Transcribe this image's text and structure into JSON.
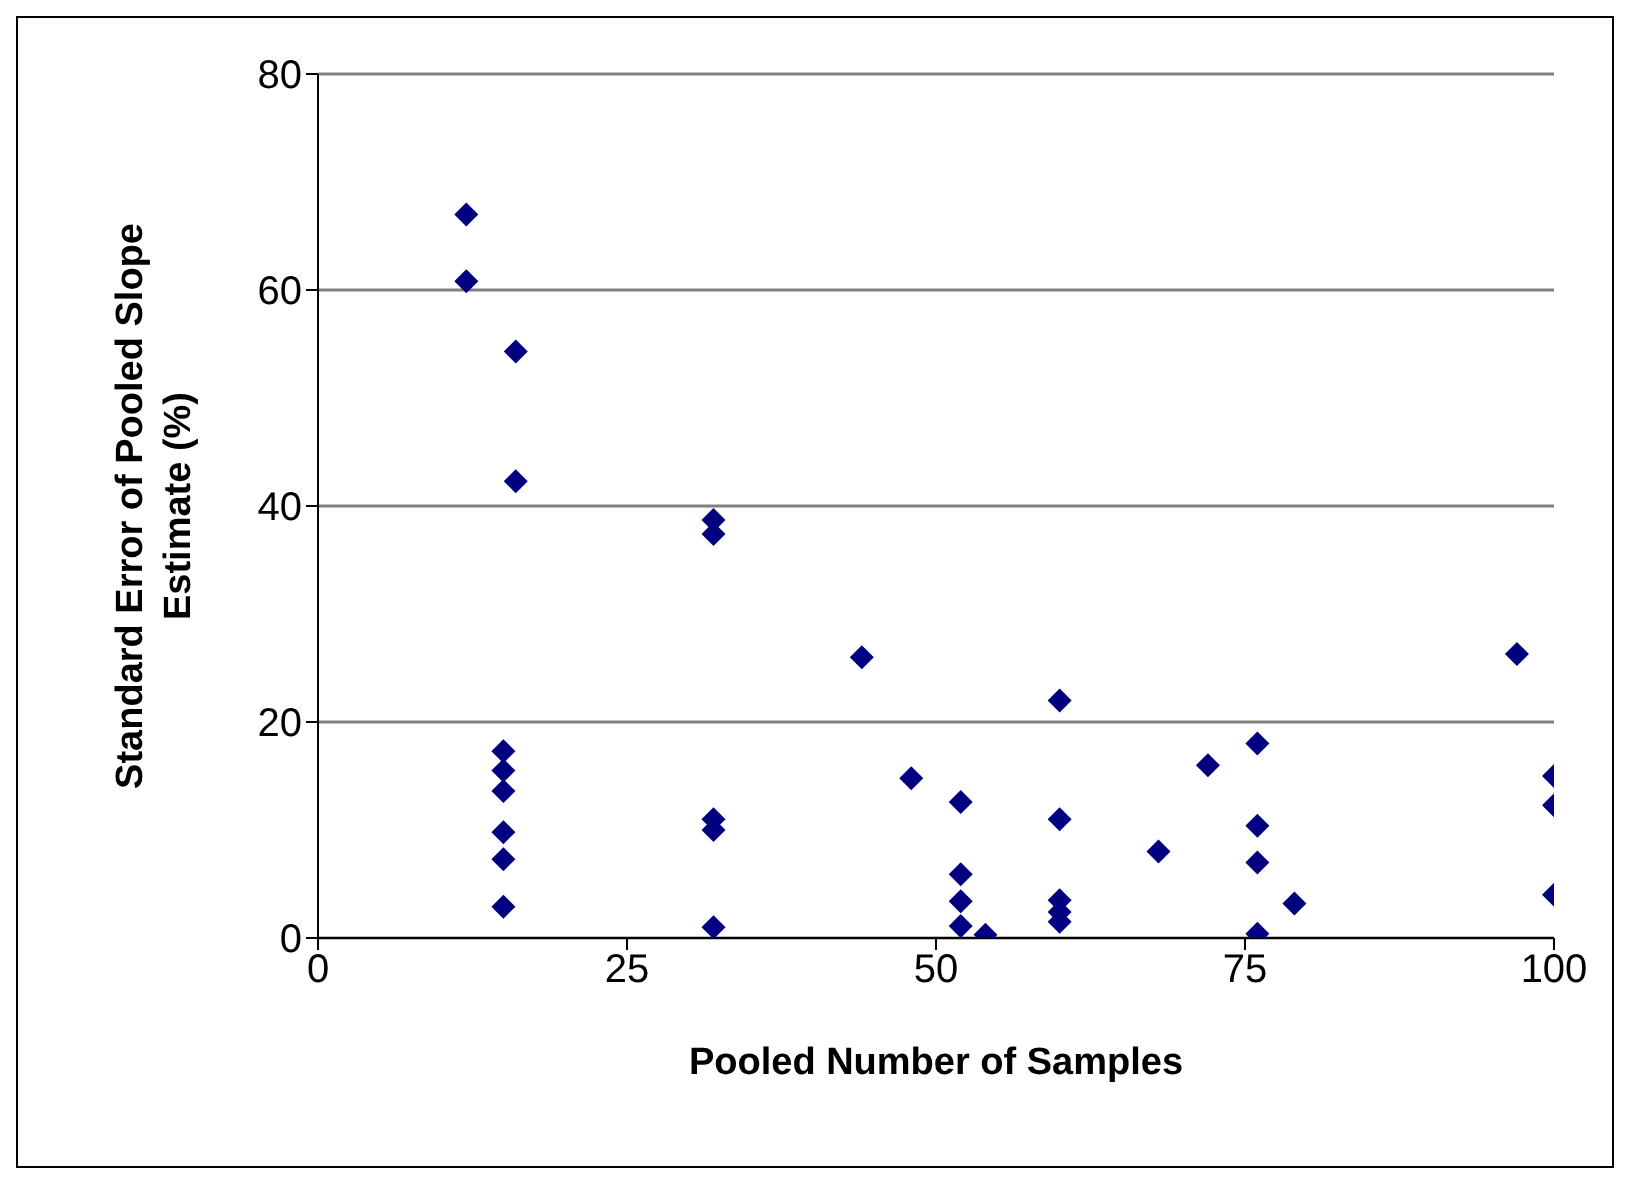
{
  "chart_data": {
    "type": "scatter",
    "xlabel": "Pooled Number of Samples",
    "ylabel": "Standard Error of Pooled Slope Estimate (%)",
    "x": [
      12,
      12,
      16,
      16,
      15,
      15,
      15,
      15,
      15,
      15,
      32,
      32,
      32,
      32,
      32,
      44,
      48,
      52,
      52,
      52,
      52,
      54,
      60,
      60,
      60,
      60,
      60,
      68,
      72,
      76,
      76,
      76,
      76,
      79,
      97,
      100,
      100,
      100
    ],
    "series": [
      {
        "color": "#000080",
        "values": [
          67,
          60.8,
          54.3,
          42.3,
          17.3,
          15.5,
          13.6,
          9.8,
          7.3,
          2.9,
          38.7,
          37.4,
          11,
          10,
          1,
          26,
          14.8,
          12.6,
          5.9,
          3.4,
          1.1,
          0.3,
          22,
          11,
          3.5,
          2.4,
          1.5,
          8,
          16,
          18,
          10.4,
          7,
          0.4,
          3.2,
          26.3,
          15,
          12.3,
          4
        ]
      }
    ],
    "xlim": [
      0,
      100
    ],
    "xticks": [
      0,
      25,
      50,
      75,
      100
    ],
    "ylim": [
      0,
      80
    ],
    "yticks": [
      0,
      20,
      40,
      60,
      80
    ],
    "grid": "y",
    "marker": "diamond"
  }
}
